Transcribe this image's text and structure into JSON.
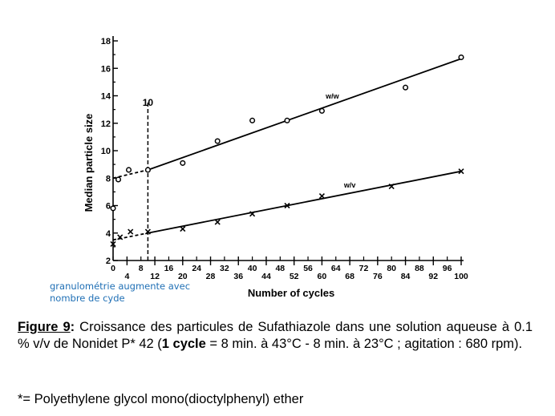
{
  "chart_data": {
    "type": "scatter",
    "title": "",
    "xlabel": "Number of cycles",
    "ylabel": "Median particle size",
    "xlim": [
      0,
      100
    ],
    "ylim": [
      2,
      18
    ],
    "grid": false,
    "x_ticks_top_row": [
      "0",
      "8",
      "16",
      "24",
      "32",
      "40",
      "48",
      "56",
      "64",
      "72",
      "80",
      "88",
      "96"
    ],
    "x_ticks_bottom_row": [
      "4",
      "12",
      "20",
      "28",
      "36",
      "44",
      "52",
      "60",
      "68",
      "76",
      "84",
      "92",
      "100"
    ],
    "y_ticks": [
      "2",
      "4",
      "6",
      "8",
      "10",
      "12",
      "14",
      "16",
      "18"
    ],
    "annotations": [
      {
        "text": "10",
        "x": 10,
        "y": 13.5,
        "note": "dashed vertical marker at cycle 10"
      },
      {
        "text": "w/w",
        "x": 63,
        "y": 13.8
      },
      {
        "text": "w/v",
        "x": 68,
        "y": 7.3
      }
    ],
    "series": [
      {
        "name": "w/w",
        "marker": "circle",
        "points": [
          [
            0,
            5.8
          ],
          [
            1.5,
            7.9
          ],
          [
            4.5,
            8.6
          ],
          [
            10,
            8.6
          ],
          [
            20,
            9.1
          ],
          [
            30,
            10.7
          ],
          [
            40,
            12.2
          ],
          [
            50,
            12.2
          ],
          [
            60,
            12.9
          ],
          [
            84,
            14.6
          ],
          [
            100,
            16.8
          ]
        ],
        "fit_line": [
          [
            0,
            8.0
          ],
          [
            10,
            8.6
          ],
          [
            100,
            16.7
          ]
        ],
        "fit_dashed_until": 10
      },
      {
        "name": "w/v",
        "marker": "cross",
        "points": [
          [
            0,
            3.2
          ],
          [
            2,
            3.7
          ],
          [
            5,
            4.1
          ],
          [
            10,
            4.1
          ],
          [
            20,
            4.3
          ],
          [
            30,
            4.8
          ],
          [
            40,
            5.4
          ],
          [
            50,
            6.0
          ],
          [
            60,
            6.7
          ],
          [
            80,
            7.4
          ],
          [
            100,
            8.5
          ]
        ],
        "fit_line": [
          [
            0,
            3.5
          ],
          [
            10,
            4.0
          ],
          [
            100,
            8.5
          ]
        ],
        "fit_dashed_until": 10
      }
    ],
    "legend": "none (inline labels)"
  },
  "annotation_note": {
    "line1": "granulométrie augmente avec",
    "line2": "nombre de cyde"
  },
  "caption": {
    "figure_label": "Figure 9",
    "colon": ":",
    "text_1": " Croissance des particules de Sufathiazole dans une solution aqueuse à 0.1 % v/v de Nonidet P* 42 (",
    "bold_1": "1 cycle",
    "text_2": " = 8 min. à 43°C -  8 min. à 23°C ; agitation : 680 rpm)."
  },
  "footnote": "*= Polyethylene glycol mono(dioctylphenyl) ether"
}
